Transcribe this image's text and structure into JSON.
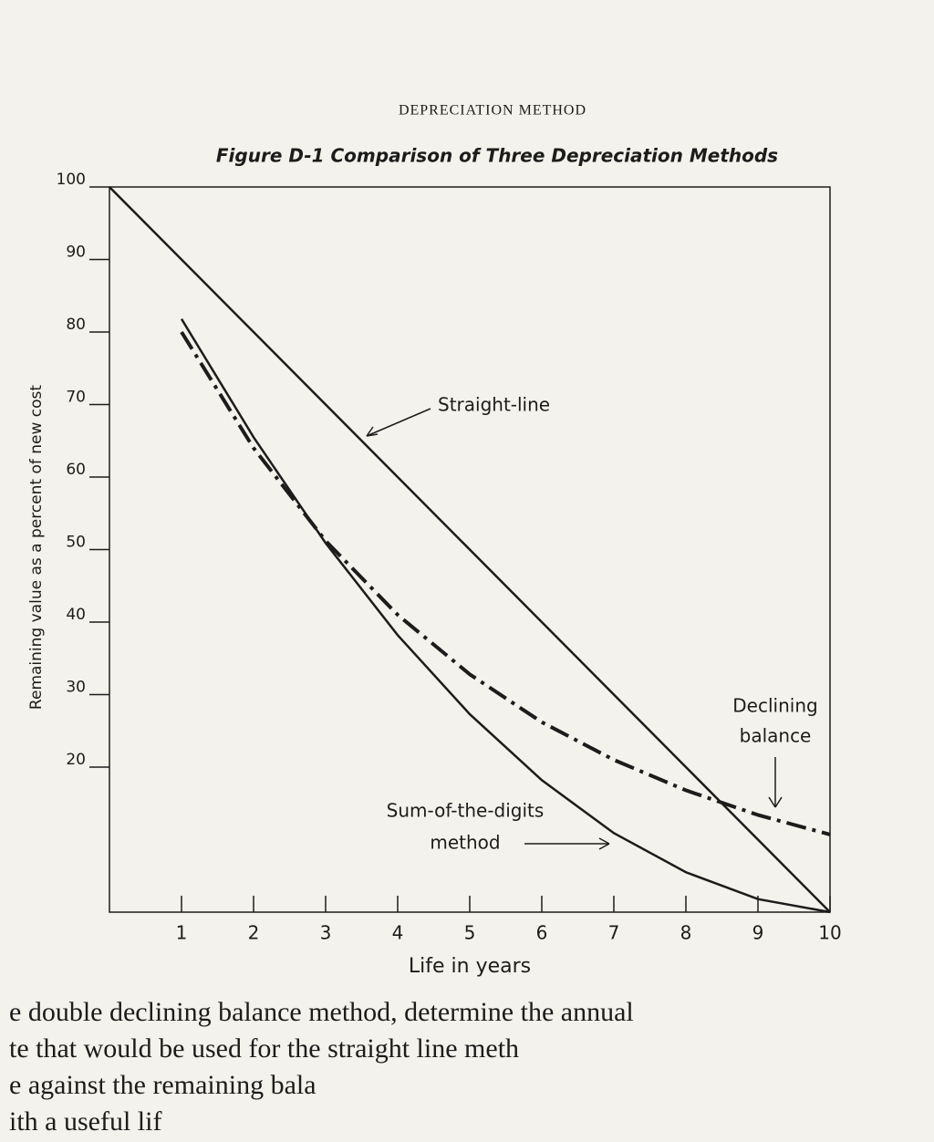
{
  "page_header": "DEPRECIATION METHOD",
  "chart_data": {
    "type": "line",
    "title": "Figure D-1 Comparison of Three Depreciation Methods",
    "x_label": "Life in years",
    "y_label": "Remaining value as a percent of new cost",
    "x": [
      0,
      1,
      2,
      3,
      4,
      5,
      6,
      7,
      8,
      9,
      10
    ],
    "xlim": [
      0,
      10
    ],
    "xticks": [
      1,
      2,
      3,
      4,
      5,
      6,
      7,
      8,
      9,
      10
    ],
    "ylim": [
      0,
      100
    ],
    "yticks": [
      20,
      30,
      40,
      50,
      60,
      70,
      80,
      90,
      100
    ],
    "series": [
      {
        "name": "Straight-line",
        "color": "#1c1c1c",
        "style": "solid",
        "values": [
          100,
          90,
          80,
          70,
          60,
          50,
          40,
          30,
          20,
          10,
          0
        ]
      },
      {
        "name": "Declining balance",
        "color": "#1c1c1c",
        "style": "dashdot",
        "values": [
          null,
          80,
          64,
          51.2,
          41,
          32.8,
          26.2,
          21,
          16.8,
          13.4,
          10.7
        ]
      },
      {
        "name": "Sum-of-the-digits method",
        "color": "#1c1c1c",
        "style": "solid",
        "values": [
          null,
          81.8,
          65.5,
          50.9,
          38.2,
          27.3,
          18.2,
          10.9,
          5.5,
          1.8,
          0
        ]
      }
    ],
    "annotations": [
      "Straight-line",
      "Declining",
      "balance",
      "Sum-of-the-digits",
      "method"
    ]
  },
  "body_text": [
    "e double declining balance method, determine the annual",
    "te that would be used for the straight line meth",
    "e against the remaining bala",
    "ith a useful lif"
  ]
}
